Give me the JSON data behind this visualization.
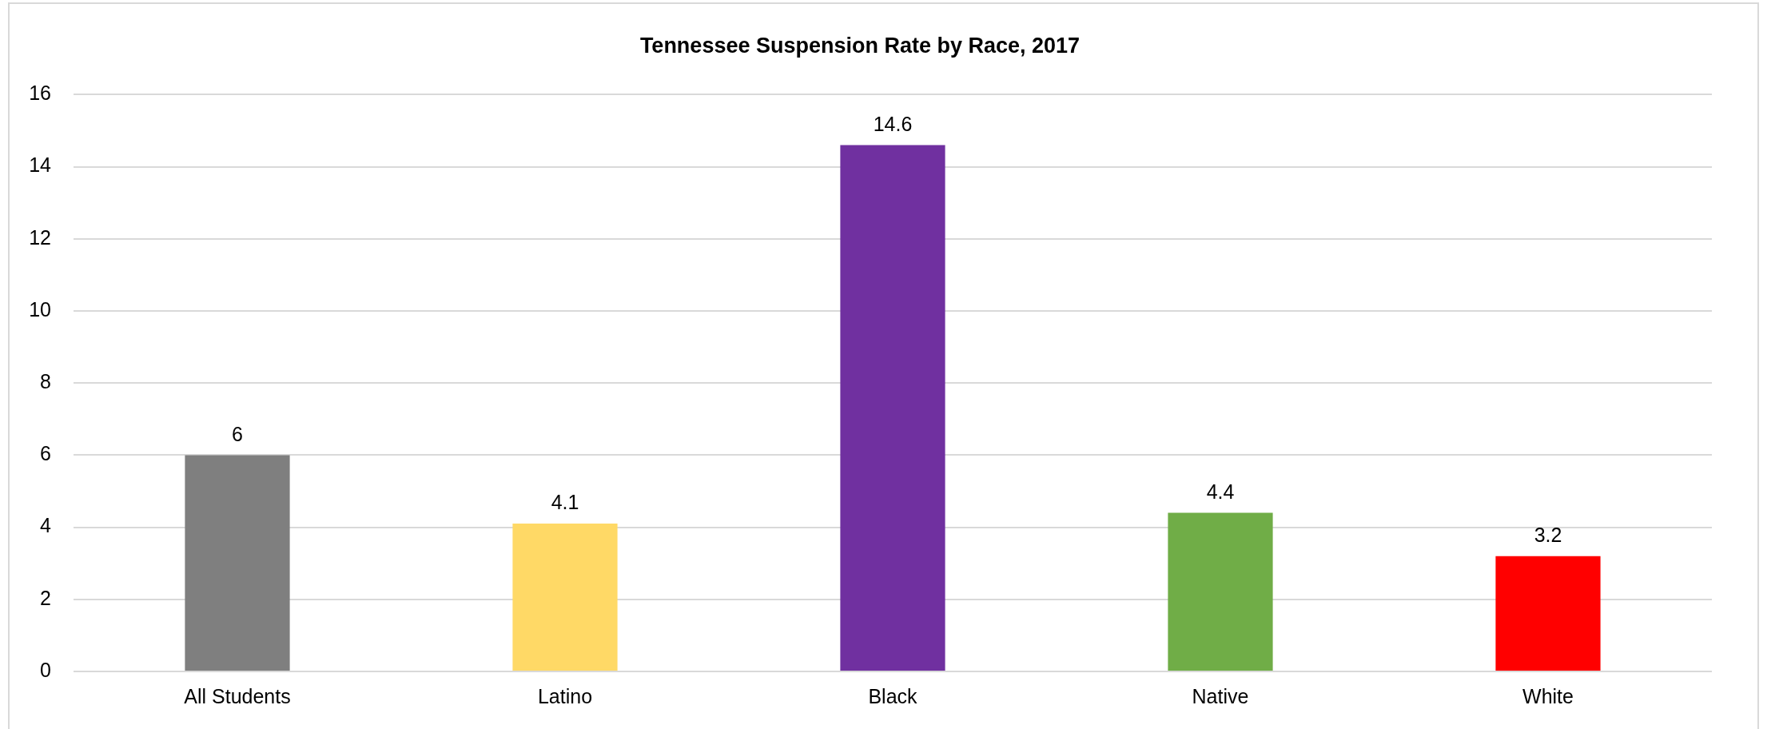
{
  "chart_data": {
    "type": "bar",
    "title": "Tennessee Suspension Rate by Race, 2017",
    "categories": [
      "All Students",
      "Latino",
      "Black",
      "Native",
      "White"
    ],
    "values": [
      6,
      4.1,
      14.6,
      4.4,
      3.2
    ],
    "colors": [
      "#7f7f7f",
      "#ffd966",
      "#7030a0",
      "#70ad47",
      "#ff0000"
    ],
    "ylim": [
      0,
      16
    ],
    "yticks": [
      0,
      2,
      4,
      6,
      8,
      10,
      12,
      14,
      16
    ],
    "grid": "y",
    "data_labels": true
  }
}
